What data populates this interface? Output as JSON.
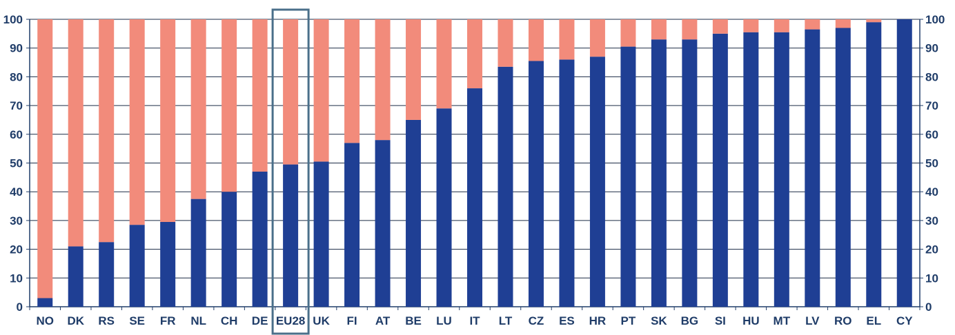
{
  "chart_data": {
    "type": "bar",
    "stacked": true,
    "categories": [
      "NO",
      "DK",
      "RS",
      "SE",
      "FR",
      "NL",
      "CH",
      "DE",
      "EU28",
      "UK",
      "FI",
      "AT",
      "BE",
      "LU",
      "IT",
      "LT",
      "CZ",
      "ES",
      "HR",
      "PT",
      "SK",
      "BG",
      "SI",
      "HU",
      "MT",
      "LV",
      "RO",
      "EL",
      "CY"
    ],
    "series": [
      {
        "color": "#1f3f94",
        "values": [
          3,
          21,
          22.5,
          28.5,
          29.5,
          37.5,
          40,
          47,
          49.5,
          50.5,
          57,
          58,
          65,
          69,
          76,
          83.5,
          85.5,
          86,
          87,
          90.5,
          93,
          93,
          95,
          95.5,
          95.5,
          96.5,
          97,
          99,
          100
        ]
      },
      {
        "color": "#f28b7b",
        "values": [
          97,
          79,
          77.5,
          71.5,
          70.5,
          62.5,
          60,
          53,
          50.5,
          49.5,
          43,
          42,
          35,
          31,
          24,
          16.5,
          14.5,
          14,
          13,
          9.5,
          7,
          7,
          5,
          4.5,
          4.5,
          3.5,
          3,
          1,
          0
        ]
      }
    ],
    "ylim": [
      0,
      100
    ],
    "yticks": [
      "0",
      "10",
      "20",
      "30",
      "40",
      "50",
      "60",
      "70",
      "80",
      "90",
      "100"
    ],
    "grid": true,
    "highlight_category": "EU28",
    "highlight_color": "#4a6f8a",
    "axis_color": "#1f3c68"
  }
}
